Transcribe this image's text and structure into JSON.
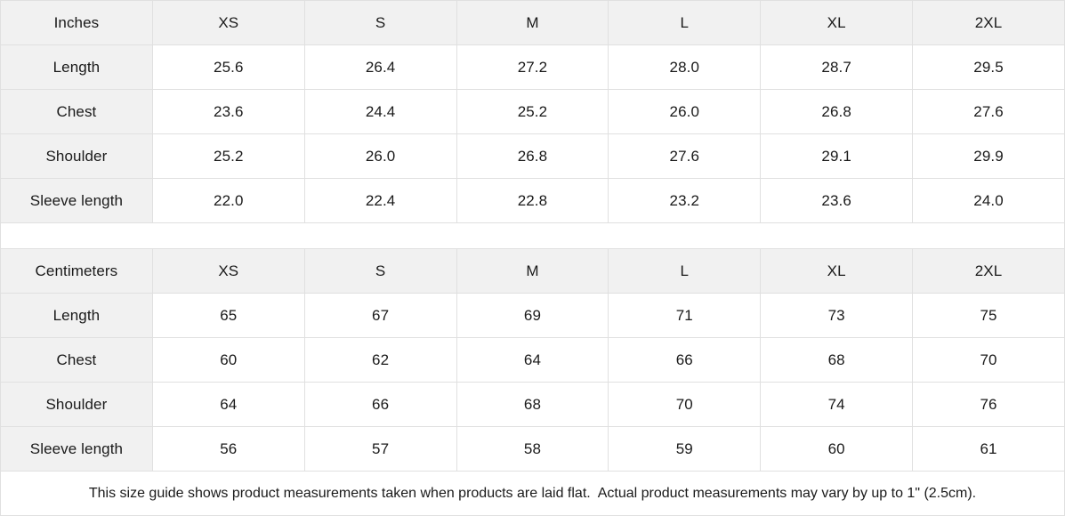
{
  "colors": {
    "header_background": "#f1f1f1",
    "border": "#e0e0e0",
    "text": "#1a1a1a",
    "cell_background": "#ffffff"
  },
  "size_columns": [
    "XS",
    "S",
    "M",
    "L",
    "XL",
    "2XL"
  ],
  "tables": [
    {
      "unit_label": "Inches",
      "rows": [
        {
          "label": "Length",
          "values": [
            "25.6",
            "26.4",
            "27.2",
            "28.0",
            "28.7",
            "29.5"
          ]
        },
        {
          "label": "Chest",
          "values": [
            "23.6",
            "24.4",
            "25.2",
            "26.0",
            "26.8",
            "27.6"
          ]
        },
        {
          "label": "Shoulder",
          "values": [
            "25.2",
            "26.0",
            "26.8",
            "27.6",
            "29.1",
            "29.9"
          ]
        },
        {
          "label": "Sleeve length",
          "values": [
            "22.0",
            "22.4",
            "22.8",
            "23.2",
            "23.6",
            "24.0"
          ]
        }
      ]
    },
    {
      "unit_label": "Centimeters",
      "rows": [
        {
          "label": "Length",
          "values": [
            "65",
            "67",
            "69",
            "71",
            "73",
            "75"
          ]
        },
        {
          "label": "Chest",
          "values": [
            "60",
            "62",
            "64",
            "66",
            "68",
            "70"
          ]
        },
        {
          "label": "Shoulder",
          "values": [
            "64",
            "66",
            "68",
            "70",
            "74",
            "76"
          ]
        },
        {
          "label": "Sleeve length",
          "values": [
            "56",
            "57",
            "58",
            "59",
            "60",
            "61"
          ]
        }
      ]
    }
  ],
  "footnote": "This size guide shows product measurements taken when products are laid flat.  Actual product measurements may vary by up to 1\" (2.5cm)."
}
